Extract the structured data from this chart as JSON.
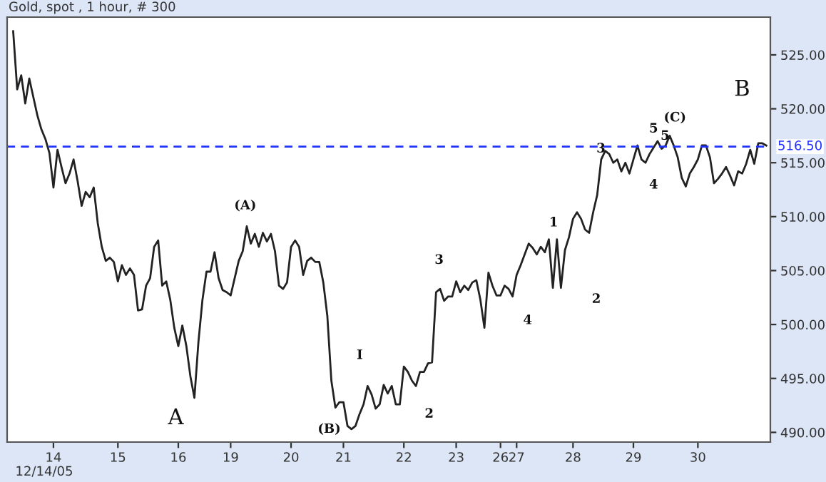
{
  "chart_data": {
    "type": "line",
    "title": "Gold, spot , 1 hour, # 300",
    "categories": [
      null,
      null,
      null,
      null,
      null,
      null,
      null,
      null,
      null,
      null,
      "14",
      null,
      null,
      null,
      null,
      null,
      null,
      null,
      null,
      null,
      null,
      null,
      null,
      null,
      null,
      null,
      "15",
      null,
      null,
      null,
      null,
      null,
      null,
      null,
      null,
      null,
      null,
      null,
      null,
      null,
      null,
      "16",
      null,
      null,
      null,
      null,
      null,
      null,
      null,
      null,
      null,
      null,
      null,
      null,
      "19",
      null,
      null,
      null,
      null,
      null,
      null,
      null,
      null,
      null,
      null,
      null,
      null,
      null,
      null,
      "20",
      null,
      null,
      null,
      null,
      null,
      null,
      null,
      null,
      null,
      null,
      null,
      null,
      "21",
      null,
      null,
      null,
      null,
      null,
      null,
      null,
      null,
      null,
      null,
      null,
      null,
      null,
      null,
      "22",
      null,
      null,
      null,
      null,
      null,
      null,
      null,
      null,
      null,
      null,
      null,
      null,
      "23",
      null,
      null,
      null,
      null,
      null,
      null,
      null,
      null,
      null,
      null,
      "26",
      null,
      null,
      null,
      "27",
      null,
      null,
      null,
      null,
      null,
      null,
      null,
      null,
      null,
      null,
      null,
      null,
      null,
      "28",
      null,
      null,
      null,
      null,
      null,
      null,
      null,
      null,
      null,
      null,
      null,
      null,
      null,
      null,
      "29",
      null,
      null,
      null,
      null,
      null,
      null,
      null,
      null,
      null,
      null,
      null,
      null,
      null,
      null,
      null,
      "30",
      null,
      null,
      null,
      null,
      null,
      null,
      null,
      null,
      null,
      null,
      null,
      null,
      null,
      null,
      null,
      null,
      null
    ],
    "series": [
      {
        "color": "#222222",
        "values": [
          527.2,
          521.8,
          523.1,
          520.5,
          522.8,
          521.1,
          519.4,
          518.1,
          517.2,
          515.9,
          512.7,
          516.2,
          514.6,
          513.1,
          514.0,
          515.3,
          513.3,
          511.0,
          512.3,
          511.8,
          512.7,
          509.4,
          507.2,
          505.9,
          506.2,
          505.8,
          504.0,
          505.5,
          504.6,
          505.2,
          504.6,
          501.3,
          501.4,
          503.6,
          504.3,
          507.2,
          507.8,
          503.6,
          504.0,
          502.3,
          499.7,
          498.0,
          499.9,
          498.0,
          495.2,
          493.2,
          498.4,
          502.3,
          504.9,
          504.9,
          506.7,
          504.3,
          503.2,
          503.0,
          502.7,
          504.3,
          505.9,
          506.8,
          509.1,
          507.5,
          508.4,
          507.2,
          508.5,
          507.7,
          508.4,
          506.8,
          503.6,
          503.3,
          503.9,
          507.2,
          507.8,
          507.2,
          504.6,
          505.9,
          506.2,
          505.8,
          505.8,
          503.9,
          500.8,
          494.8,
          492.3,
          492.8,
          492.8,
          490.6,
          490.3,
          490.6,
          491.7,
          492.6,
          494.3,
          493.5,
          492.2,
          492.6,
          494.4,
          493.6,
          494.3,
          492.6,
          492.6,
          496.1,
          495.6,
          494.8,
          494.3,
          495.6,
          495.6,
          496.4,
          496.5,
          503.0,
          503.3,
          502.2,
          502.6,
          502.6,
          504.0,
          503.0,
          503.6,
          503.2,
          503.9,
          504.1,
          502.3,
          499.7,
          504.8,
          503.6,
          502.7,
          502.7,
          503.6,
          503.3,
          502.6,
          504.6,
          505.5,
          506.5,
          507.5,
          507.1,
          506.5,
          507.2,
          506.7,
          507.9,
          503.4,
          507.9,
          503.4,
          506.9,
          508.1,
          509.8,
          510.4,
          509.8,
          508.8,
          508.5,
          510.4,
          512.0,
          515.3,
          516.1,
          515.8,
          515.0,
          515.3,
          514.2,
          515.0,
          514.0,
          515.3,
          516.6,
          515.3,
          515.0,
          515.8,
          516.4,
          517.0,
          516.3,
          516.6,
          517.5,
          516.6,
          515.5,
          513.6,
          512.8,
          514.0,
          514.6,
          515.3,
          516.6,
          516.6,
          515.5,
          513.1,
          513.5,
          514.0,
          514.6,
          513.8,
          512.9,
          514.2,
          514.0,
          514.9,
          516.2,
          514.9,
          516.8,
          516.8,
          516.6
        ]
      }
    ],
    "ylim": [
      489.1,
      528.5
    ],
    "yticks": [
      {
        "value": 490,
        "label": "490.00"
      },
      {
        "value": 495,
        "label": "495.00"
      },
      {
        "value": 500,
        "label": "500.00"
      },
      {
        "value": 505,
        "label": "505.00"
      },
      {
        "value": 510,
        "label": "510.00"
      },
      {
        "value": 515,
        "label": "515.00"
      },
      {
        "value": 520,
        "label": "520.00"
      },
      {
        "value": 525,
        "label": "525.00"
      }
    ],
    "ref_lines": [
      {
        "axis": "y",
        "value": 516.5,
        "label": "516.50",
        "color": "#2233ff",
        "line_style": "dashed"
      }
    ],
    "annotations": [
      "A",
      "(A)",
      "(B)",
      "I",
      "2",
      "3",
      "4",
      "1",
      "2",
      "3",
      "5",
      "4",
      "5",
      "(C)",
      "B",
      "12/14/05"
    ],
    "grid": false,
    "legend": false,
    "line_style": "solid",
    "marker": "none"
  }
}
